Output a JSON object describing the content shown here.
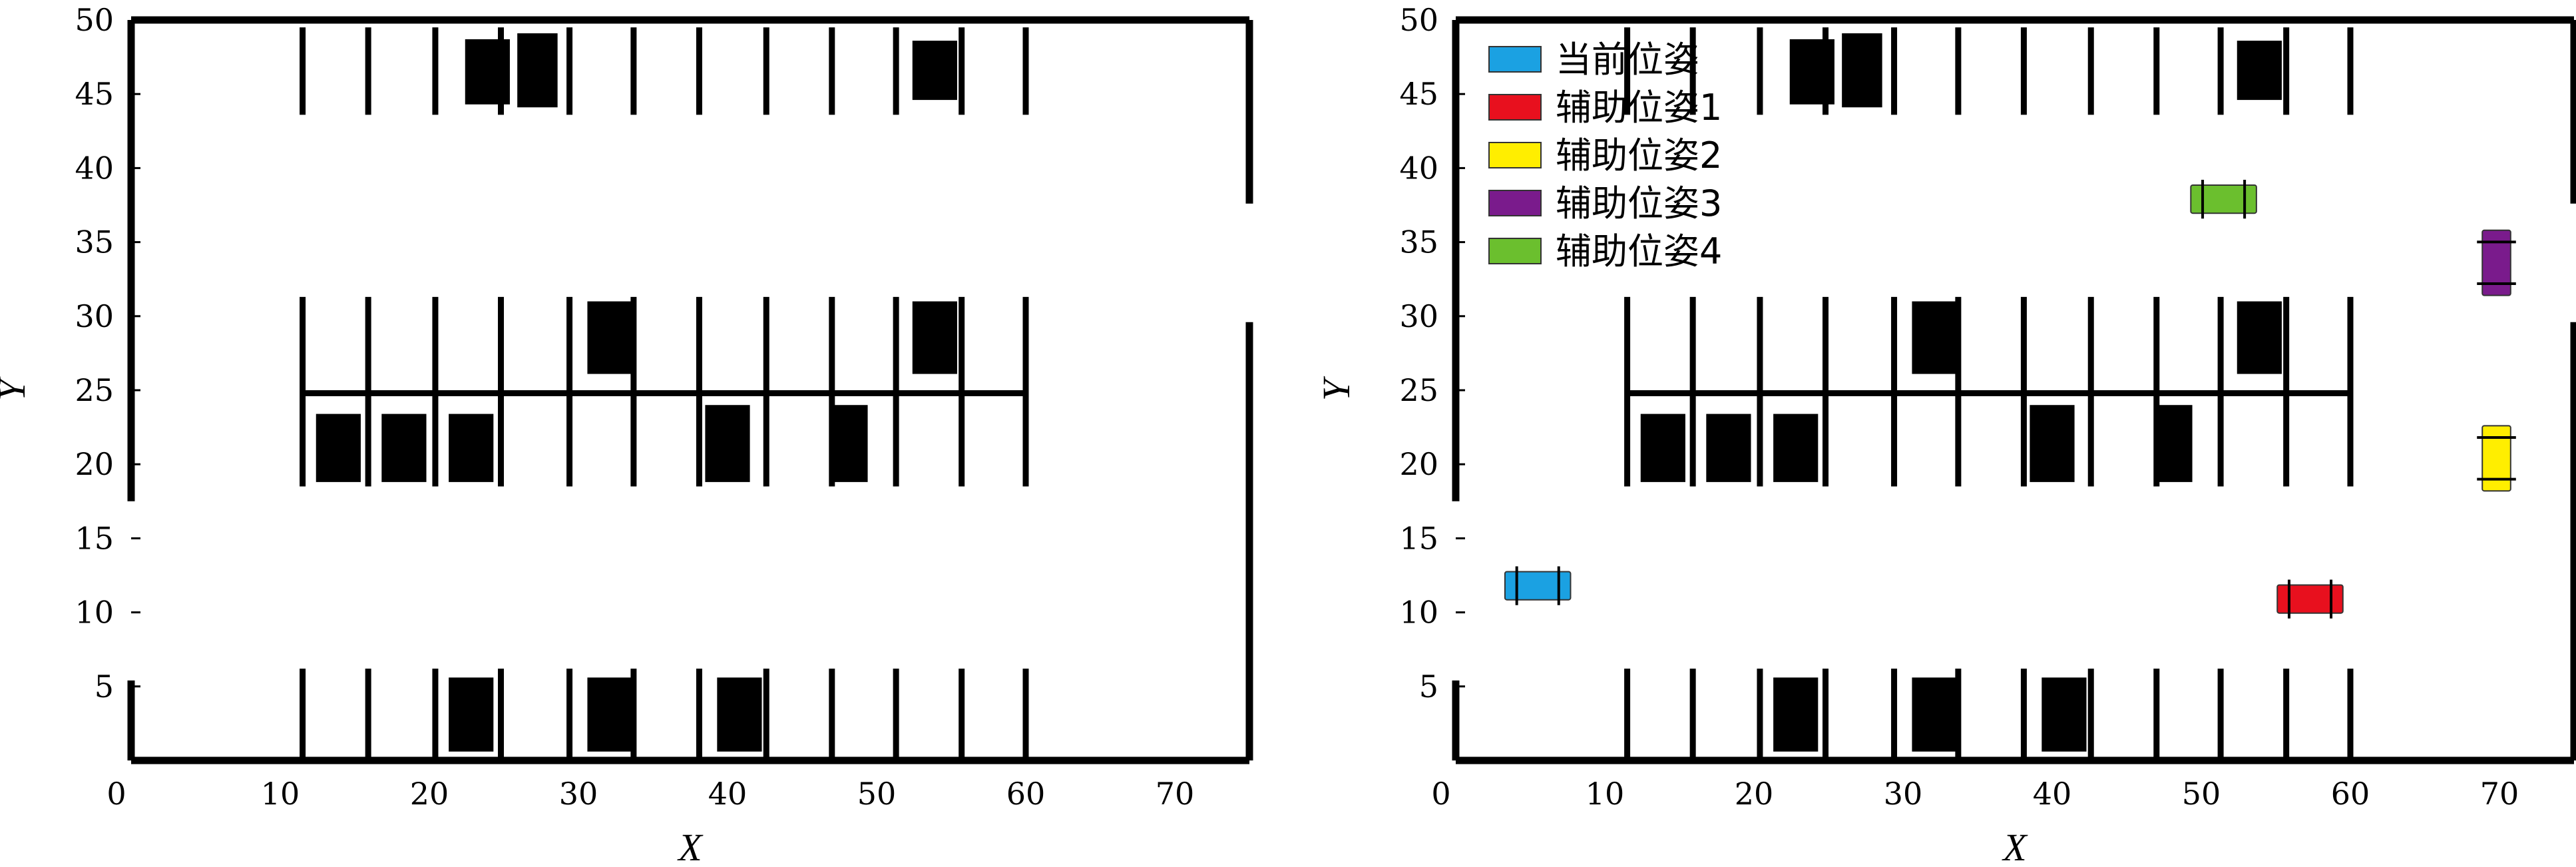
{
  "chart_data": [
    {
      "type": "scatter",
      "subplot": "left",
      "xlabel": "X",
      "ylabel": "Y",
      "xlim": [
        0,
        75
      ],
      "ylim": [
        0,
        50
      ],
      "xticks": [
        0,
        10,
        20,
        30,
        40,
        50,
        60,
        70
      ],
      "yticks": [
        5,
        10,
        15,
        20,
        25,
        30,
        35,
        40,
        45,
        50
      ],
      "grid": false,
      "obstacle_color": "#000000",
      "parked_cars": [
        {
          "x": 22.4,
          "y": 44.3,
          "w": 3.0,
          "h": 4.4
        },
        {
          "x": 25.9,
          "y": 44.1,
          "w": 2.7,
          "h": 5.0
        },
        {
          "x": 52.4,
          "y": 44.6,
          "w": 3.0,
          "h": 4.0
        },
        {
          "x": 30.6,
          "y": 26.1,
          "w": 3.0,
          "h": 4.9
        },
        {
          "x": 52.4,
          "y": 26.1,
          "w": 3.0,
          "h": 4.9
        },
        {
          "x": 12.4,
          "y": 18.8,
          "w": 3.0,
          "h": 4.6
        },
        {
          "x": 16.8,
          "y": 18.8,
          "w": 3.0,
          "h": 4.6
        },
        {
          "x": 21.3,
          "y": 18.8,
          "w": 3.0,
          "h": 4.6
        },
        {
          "x": 38.5,
          "y": 18.8,
          "w": 3.0,
          "h": 5.2
        },
        {
          "x": 46.9,
          "y": 18.8,
          "w": 2.5,
          "h": 5.2
        },
        {
          "x": 21.3,
          "y": 0.6,
          "w": 3.0,
          "h": 5.0
        },
        {
          "x": 30.6,
          "y": 0.6,
          "w": 3.0,
          "h": 5.0
        },
        {
          "x": 39.3,
          "y": 0.6,
          "w": 3.0,
          "h": 5.0
        }
      ]
    },
    {
      "type": "scatter",
      "subplot": "right",
      "xlabel": "X",
      "ylabel": "Y",
      "xlim": [
        0,
        75
      ],
      "ylim": [
        0,
        50
      ],
      "xticks": [
        0,
        10,
        20,
        30,
        40,
        50,
        60,
        70
      ],
      "yticks": [
        5,
        10,
        15,
        20,
        25,
        30,
        35,
        40,
        45,
        50
      ],
      "grid": false,
      "legend_position": "top-left",
      "series": [
        {
          "name": "当前位姿",
          "color": "#1ba1e2",
          "x": 5.5,
          "y": 11.8,
          "orientation": "horizontal"
        },
        {
          "name": "辅助位姿1",
          "color": "#e8101e",
          "x": 57.3,
          "y": 10.9,
          "orientation": "horizontal"
        },
        {
          "name": "辅助位姿2",
          "color": "#ffee00",
          "x": 69.8,
          "y": 20.4,
          "orientation": "vertical"
        },
        {
          "name": "辅助位姿3",
          "color": "#7a1b8c",
          "x": 69.8,
          "y": 33.6,
          "orientation": "vertical"
        },
        {
          "name": "辅助位姿4",
          "color": "#6bbf2e",
          "x": 51.5,
          "y": 37.9,
          "orientation": "horizontal"
        }
      ],
      "parked_cars": [
        {
          "x": 22.4,
          "y": 44.3,
          "w": 3.0,
          "h": 4.4
        },
        {
          "x": 25.9,
          "y": 44.1,
          "w": 2.7,
          "h": 5.0
        },
        {
          "x": 52.4,
          "y": 44.6,
          "w": 3.0,
          "h": 4.0
        },
        {
          "x": 30.6,
          "y": 26.1,
          "w": 3.0,
          "h": 4.9
        },
        {
          "x": 52.4,
          "y": 26.1,
          "w": 3.0,
          "h": 4.9
        },
        {
          "x": 12.4,
          "y": 18.8,
          "w": 3.0,
          "h": 4.6
        },
        {
          "x": 16.8,
          "y": 18.8,
          "w": 3.0,
          "h": 4.6
        },
        {
          "x": 21.3,
          "y": 18.8,
          "w": 3.0,
          "h": 4.6
        },
        {
          "x": 38.5,
          "y": 18.8,
          "w": 3.0,
          "h": 5.2
        },
        {
          "x": 46.9,
          "y": 18.8,
          "w": 2.5,
          "h": 5.2
        },
        {
          "x": 21.3,
          "y": 0.6,
          "w": 3.0,
          "h": 5.0
        },
        {
          "x": 30.6,
          "y": 0.6,
          "w": 3.0,
          "h": 5.0
        },
        {
          "x": 39.3,
          "y": 0.6,
          "w": 3.0,
          "h": 5.0
        }
      ]
    }
  ],
  "parking_layout": {
    "upper_row": {
      "xs": [
        11.5,
        15.9,
        20.4,
        24.8,
        29.4,
        33.7,
        38.1,
        42.6,
        47.0,
        51.3,
        55.7,
        60.0
      ],
      "y0": 43.6,
      "y1": 49.5
    },
    "middle_row_top": {
      "xs": [
        11.5,
        15.9,
        20.4,
        24.8,
        29.4,
        33.7,
        38.1,
        42.6,
        47.0,
        51.3,
        55.7,
        60.0
      ],
      "y0": 24.8,
      "y1": 31.3
    },
    "middle_row_bottom": {
      "xs": [
        11.5,
        15.9,
        20.4,
        24.8,
        29.4,
        33.7,
        38.1,
        42.6,
        47.0,
        51.3,
        55.7,
        60.0
      ],
      "y0": 18.5,
      "y1": 24.8
    },
    "middle_divider": {
      "x0": 11.5,
      "x1": 60.0,
      "y": 24.8
    },
    "lower_row": {
      "xs": [
        11.5,
        15.9,
        20.4,
        24.8,
        29.4,
        33.7,
        38.1,
        42.6,
        47.0,
        51.3,
        55.7,
        60.0
      ],
      "y0": 0,
      "y1": 6.2
    },
    "left_gap": [
      5.4,
      17.5
    ],
    "right_gap": [
      29.6,
      37.6
    ]
  }
}
